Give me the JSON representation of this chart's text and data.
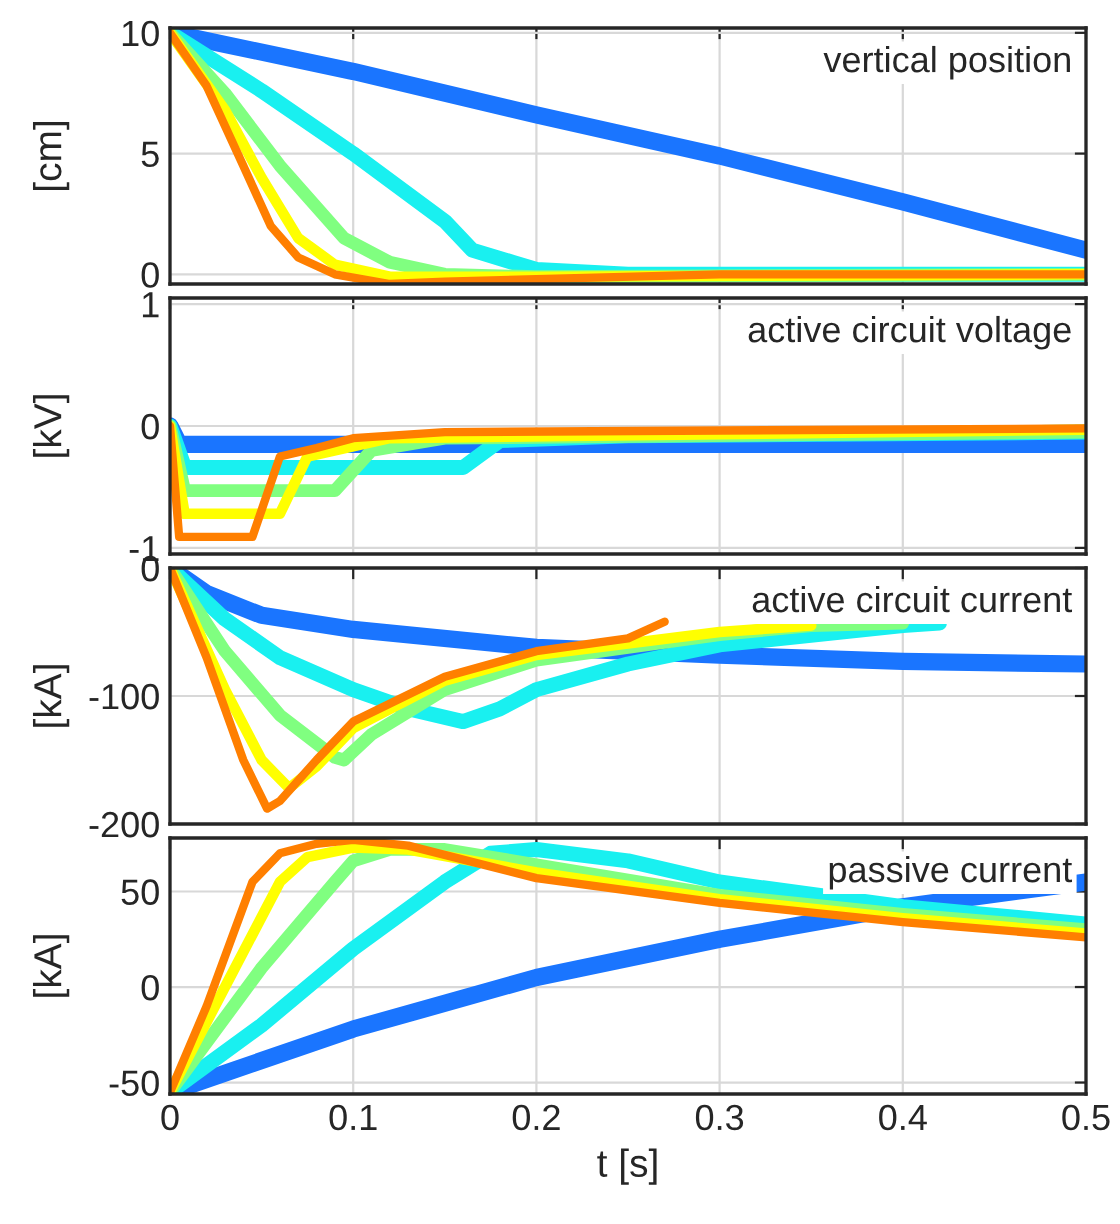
{
  "chart_data": [
    {
      "type": "line",
      "ylabel": "[cm]",
      "annotations": [
        "vertical position"
      ],
      "xlim": [
        0,
        0.5
      ],
      "xticks": [
        0,
        0.1,
        0.2,
        0.3,
        0.4,
        0.5
      ],
      "ylim": [
        -0.4,
        10.2
      ],
      "yticks": [
        0,
        5,
        10
      ],
      "grid": true,
      "tick_labels": "y",
      "series": [
        {
          "color": "#1a75ff",
          "x": [
            0,
            0.1,
            0.2,
            0.3,
            0.4,
            0.5
          ],
          "values": [
            10,
            8.4,
            6.6,
            4.9,
            3.0,
            1.0
          ]
        },
        {
          "color": "#19f0f0",
          "x": [
            0,
            0.05,
            0.1,
            0.15,
            0.165,
            0.2,
            0.25,
            0.5
          ],
          "values": [
            10,
            7.6,
            5.0,
            2.2,
            1.0,
            0.2,
            0,
            0
          ]
        },
        {
          "color": "#80ff80",
          "x": [
            0,
            0.03,
            0.06,
            0.095,
            0.12,
            0.15,
            0.2,
            0.5
          ],
          "values": [
            10,
            7.5,
            4.5,
            1.5,
            0.5,
            0,
            -0.1,
            0
          ]
        },
        {
          "color": "#ffff00",
          "x": [
            0,
            0.03,
            0.05,
            0.07,
            0.09,
            0.12,
            0.2,
            0.5
          ],
          "values": [
            10,
            6.8,
            4,
            1.5,
            0.4,
            -0.1,
            -0.1,
            0
          ]
        },
        {
          "color": "#ff7f00",
          "x": [
            0,
            0.02,
            0.04,
            0.055,
            0.07,
            0.09,
            0.12,
            0.15,
            0.2,
            0.3,
            0.5
          ],
          "values": [
            10,
            7.8,
            4.5,
            2.0,
            0.7,
            0,
            -0.4,
            -0.3,
            -0.2,
            0,
            0
          ]
        }
      ]
    },
    {
      "type": "line",
      "ylabel": "[kV]",
      "annotations": [
        "active circuit voltage"
      ],
      "xlim": [
        0,
        0.5
      ],
      "xticks": [
        0,
        0.1,
        0.2,
        0.3,
        0.4,
        0.5
      ],
      "ylim": [
        -1.05,
        1.05
      ],
      "yticks": [
        -1,
        0,
        1
      ],
      "grid": true,
      "tick_labels": "y",
      "series": [
        {
          "color": "#1a75ff",
          "x": [
            0,
            0.005,
            0.5
          ],
          "values": [
            0,
            -0.15,
            -0.15
          ]
        },
        {
          "color": "#19f0f0",
          "x": [
            0,
            0.008,
            0.16,
            0.18,
            0.25,
            0.5
          ],
          "values": [
            0,
            -0.34,
            -0.34,
            -0.12,
            -0.08,
            -0.05
          ]
        },
        {
          "color": "#80ff80",
          "x": [
            0,
            0.008,
            0.09,
            0.11,
            0.15,
            0.5
          ],
          "values": [
            0,
            -0.53,
            -0.53,
            -0.2,
            -0.1,
            -0.05
          ]
        },
        {
          "color": "#ffff00",
          "x": [
            0,
            0.008,
            0.06,
            0.075,
            0.12,
            0.5
          ],
          "values": [
            0,
            -0.72,
            -0.72,
            -0.25,
            -0.1,
            -0.03
          ]
        },
        {
          "color": "#ff7f00",
          "x": [
            0,
            0.005,
            0.045,
            0.06,
            0.08,
            0.1,
            0.15,
            0.5
          ],
          "values": [
            0,
            -0.91,
            -0.91,
            -0.25,
            -0.18,
            -0.1,
            -0.05,
            -0.02
          ]
        }
      ]
    },
    {
      "type": "line",
      "ylabel": "[kA]",
      "annotations": [
        "active circuit current"
      ],
      "xlim": [
        0,
        0.5
      ],
      "xticks": [
        0,
        0.1,
        0.2,
        0.3,
        0.4,
        0.5
      ],
      "ylim": [
        -200,
        0
      ],
      "yticks": [
        -200,
        -100,
        0
      ],
      "grid": true,
      "tick_labels": "y",
      "series": [
        {
          "color": "#1a75ff",
          "x": [
            0,
            0.02,
            0.05,
            0.1,
            0.2,
            0.3,
            0.4,
            0.5
          ],
          "values": [
            0,
            -20,
            -37,
            -48,
            -62,
            -68,
            -73,
            -75
          ]
        },
        {
          "color": "#19f0f0",
          "x": [
            0,
            0.03,
            0.06,
            0.1,
            0.13,
            0.16,
            0.18,
            0.2,
            0.25,
            0.3,
            0.4,
            0.42
          ],
          "values": [
            0,
            -40,
            -70,
            -95,
            -110,
            -120,
            -110,
            -95,
            -75,
            -60,
            -45,
            -43
          ]
        },
        {
          "color": "#80ff80",
          "x": [
            0,
            0.03,
            0.06,
            0.09,
            0.095,
            0.11,
            0.15,
            0.2,
            0.3,
            0.35,
            0.4
          ],
          "values": [
            0,
            -65,
            -115,
            -148,
            -150,
            -130,
            -95,
            -72,
            -52,
            -45,
            -43
          ]
        },
        {
          "color": "#ffff00",
          "x": [
            0,
            0.03,
            0.05,
            0.065,
            0.08,
            0.1,
            0.15,
            0.2,
            0.3,
            0.35
          ],
          "values": [
            0,
            -95,
            -150,
            -172,
            -155,
            -125,
            -88,
            -68,
            -50,
            -45
          ]
        },
        {
          "color": "#ff7f00",
          "x": [
            0,
            0.02,
            0.04,
            0.053,
            0.06,
            0.08,
            0.1,
            0.15,
            0.2,
            0.25,
            0.27
          ],
          "values": [
            0,
            -70,
            -150,
            -188,
            -182,
            -150,
            -120,
            -85,
            -65,
            -55,
            -42
          ]
        }
      ]
    },
    {
      "type": "line",
      "ylabel": "[kA]",
      "xlabel": "t [s]",
      "annotations": [
        "passive current"
      ],
      "xlim": [
        0,
        0.5
      ],
      "xticks": [
        0,
        0.1,
        0.2,
        0.3,
        0.4,
        0.5
      ],
      "ylim": [
        -56,
        78
      ],
      "yticks": [
        -50,
        0,
        50
      ],
      "grid": true,
      "series": [
        {
          "color": "#1a75ff",
          "x": [
            0,
            0.1,
            0.2,
            0.3,
            0.4,
            0.5
          ],
          "values": [
            -55,
            -22,
            5,
            25,
            42,
            55
          ]
        },
        {
          "color": "#19f0f0",
          "x": [
            0,
            0.05,
            0.1,
            0.15,
            0.175,
            0.2,
            0.25,
            0.3,
            0.4,
            0.5
          ],
          "values": [
            -55,
            -20,
            20,
            55,
            70,
            72,
            66,
            55,
            42,
            33
          ]
        },
        {
          "color": "#80ff80",
          "x": [
            0,
            0.05,
            0.09,
            0.1,
            0.12,
            0.15,
            0.2,
            0.3,
            0.4,
            0.5
          ],
          "values": [
            -55,
            10,
            55,
            66,
            72,
            72,
            64,
            48,
            38,
            30
          ]
        },
        {
          "color": "#ffff00",
          "x": [
            0,
            0.03,
            0.06,
            0.075,
            0.1,
            0.13,
            0.2,
            0.3,
            0.4,
            0.5
          ],
          "values": [
            -55,
            0,
            55,
            68,
            73,
            72,
            60,
            46,
            36,
            28
          ]
        },
        {
          "color": "#ff7f00",
          "x": [
            0,
            0.02,
            0.045,
            0.06,
            0.08,
            0.1,
            0.13,
            0.2,
            0.3,
            0.4,
            0.5
          ],
          "values": [
            -55,
            -10,
            55,
            70,
            75,
            77,
            74,
            57,
            44,
            34,
            26
          ]
        }
      ]
    }
  ]
}
